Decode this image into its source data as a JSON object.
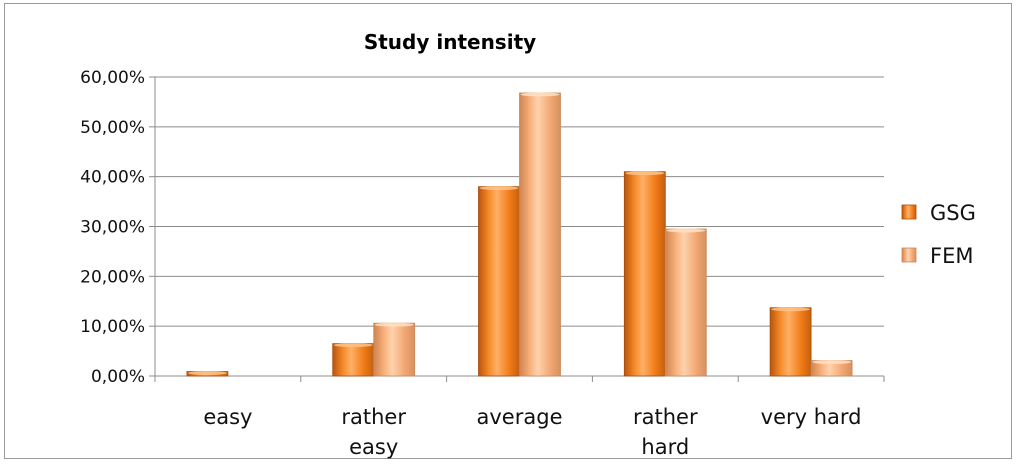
{
  "chart_data": {
    "type": "bar",
    "title": "Study intensity",
    "categories": [
      [
        "easy"
      ],
      [
        "rather",
        "easy"
      ],
      [
        "average"
      ],
      [
        "rather",
        "hard"
      ],
      [
        "very hard"
      ]
    ],
    "series": [
      {
        "name": "GSG",
        "values": [
          0.9,
          6.5,
          38.0,
          41.0,
          13.7
        ],
        "color": "#f5841f"
      },
      {
        "name": "FEM",
        "values": [
          0.0,
          10.6,
          56.8,
          29.5,
          3.1
        ],
        "color": "#f7b27e"
      }
    ],
    "ylim": [
      0,
      60
    ],
    "yticks": [
      "0,00%",
      "10,00%",
      "20,00%",
      "30,00%",
      "40,00%",
      "50,00%",
      "60,00%"
    ],
    "grid": true,
    "legend": "right"
  }
}
